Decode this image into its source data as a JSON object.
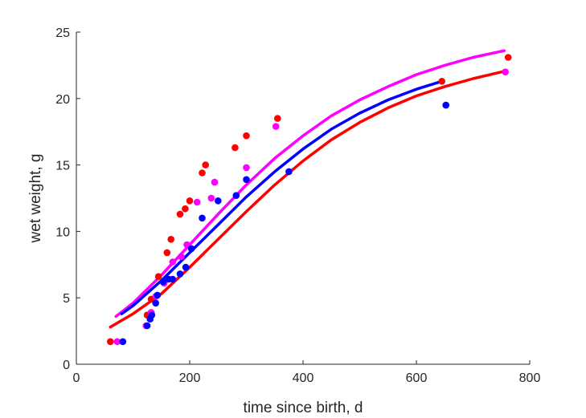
{
  "chart_data": {
    "type": "scatter",
    "xlabel": "time since birth, d",
    "ylabel": "wet weight, g",
    "xlim": [
      0,
      800
    ],
    "ylim": [
      0,
      25
    ],
    "xticks": [
      "0",
      "200",
      "400",
      "600",
      "800"
    ],
    "yticks": [
      "0",
      "5",
      "10",
      "15",
      "20",
      "25"
    ],
    "grid": false,
    "box": "off",
    "series": [
      {
        "color": "#ff0000",
        "points": [
          [
            60,
            1.7
          ],
          [
            125,
            3.7
          ],
          [
            132,
            4.9
          ],
          [
            145,
            6.6
          ],
          [
            160,
            8.4
          ],
          [
            167,
            9.4
          ],
          [
            183,
            11.3
          ],
          [
            192,
            11.7
          ],
          [
            200,
            12.3
          ],
          [
            222,
            14.4
          ],
          [
            228,
            15.0
          ],
          [
            280,
            16.3
          ],
          [
            300,
            17.2
          ],
          [
            355,
            18.5
          ],
          [
            645,
            21.3
          ],
          [
            762,
            23.1
          ]
        ],
        "curve": [
          [
            60,
            2.8
          ],
          [
            100,
            3.8
          ],
          [
            150,
            5.3
          ],
          [
            200,
            7.3
          ],
          [
            250,
            9.4
          ],
          [
            300,
            11.5
          ],
          [
            350,
            13.5
          ],
          [
            400,
            15.3
          ],
          [
            450,
            16.9
          ],
          [
            500,
            18.2
          ],
          [
            550,
            19.3
          ],
          [
            600,
            20.2
          ],
          [
            650,
            20.9
          ],
          [
            700,
            21.5
          ],
          [
            750,
            22.0
          ],
          [
            755,
            22.05
          ]
        ]
      },
      {
        "color": "#ff00ff",
        "points": [
          [
            72,
            1.7
          ],
          [
            123,
            2.9
          ],
          [
            132,
            3.9
          ],
          [
            140,
            5.1
          ],
          [
            155,
            6.1
          ],
          [
            170,
            7.7
          ],
          [
            185,
            8.1
          ],
          [
            195,
            9.0
          ],
          [
            213,
            12.2
          ],
          [
            238,
            12.5
          ],
          [
            244,
            13.7
          ],
          [
            300,
            14.8
          ],
          [
            352,
            17.9
          ],
          [
            757,
            22.0
          ]
        ],
        "curve": [
          [
            70,
            3.6
          ],
          [
            100,
            4.6
          ],
          [
            150,
            6.7
          ],
          [
            200,
            9.0
          ],
          [
            250,
            11.3
          ],
          [
            300,
            13.5
          ],
          [
            350,
            15.5
          ],
          [
            400,
            17.2
          ],
          [
            450,
            18.7
          ],
          [
            500,
            19.9
          ],
          [
            550,
            20.9
          ],
          [
            600,
            21.8
          ],
          [
            650,
            22.5
          ],
          [
            700,
            23.1
          ],
          [
            755,
            23.6
          ]
        ]
      },
      {
        "color": "#0000ff",
        "points": [
          [
            82,
            1.7
          ],
          [
            125,
            2.9
          ],
          [
            130,
            3.4
          ],
          [
            133,
            3.7
          ],
          [
            140,
            4.6
          ],
          [
            143,
            5.2
          ],
          [
            153,
            6.2
          ],
          [
            163,
            6.4
          ],
          [
            170,
            6.4
          ],
          [
            183,
            6.8
          ],
          [
            193,
            7.3
          ],
          [
            203,
            8.7
          ],
          [
            222,
            11.0
          ],
          [
            250,
            12.3
          ],
          [
            282,
            12.7
          ],
          [
            300,
            13.9
          ],
          [
            375,
            14.5
          ],
          [
            652,
            19.5
          ]
        ],
        "curve": [
          [
            80,
            3.8
          ],
          [
            100,
            4.4
          ],
          [
            150,
            6.3
          ],
          [
            200,
            8.4
          ],
          [
            250,
            10.5
          ],
          [
            300,
            12.6
          ],
          [
            350,
            14.5
          ],
          [
            400,
            16.2
          ],
          [
            450,
            17.7
          ],
          [
            500,
            18.9
          ],
          [
            550,
            19.9
          ],
          [
            600,
            20.7
          ],
          [
            645,
            21.3
          ]
        ]
      }
    ]
  }
}
